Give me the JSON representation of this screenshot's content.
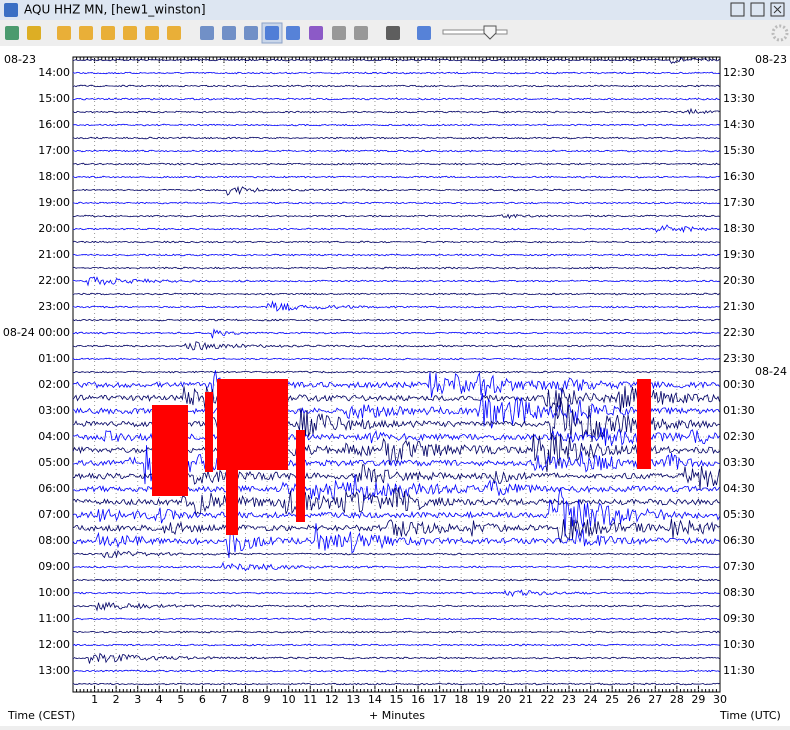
{
  "window": {
    "title": "AQU HHZ MN, [hew1_winston]"
  },
  "helicorder": {
    "left_date_top": "08-23",
    "left_times": [
      "14:00",
      "15:00",
      "16:00",
      "17:00",
      "18:00",
      "19:00",
      "20:00",
      "21:00",
      "22:00",
      "23:00",
      "08-24 00:00",
      "01:00",
      "02:00",
      "03:00",
      "04:00",
      "05:00",
      "06:00",
      "07:00",
      "08:00",
      "09:00",
      "10:00",
      "11:00",
      "12:00",
      "13:00"
    ],
    "right_date_top": "08-23",
    "right_date_mid": "08-24",
    "right_times": [
      "12:30",
      "13:30",
      "14:30",
      "15:30",
      "16:30",
      "17:30",
      "18:30",
      "19:30",
      "20:30",
      "21:30",
      "22:30",
      "23:30",
      "00:30",
      "01:30",
      "02:30",
      "03:30",
      "04:30",
      "05:30",
      "06:30",
      "07:30",
      "08:30",
      "09:30",
      "10:30",
      "11:30"
    ],
    "minutes": [
      "1",
      "2",
      "3",
      "4",
      "5",
      "6",
      "7",
      "8",
      "9",
      "10",
      "11",
      "12",
      "13",
      "14",
      "15",
      "16",
      "17",
      "18",
      "19",
      "20",
      "21",
      "22",
      "23",
      "24",
      "25",
      "26",
      "27",
      "28",
      "29",
      "30"
    ],
    "x_label_left": "Time (CEST)",
    "x_label_center": "+ Minutes",
    "x_label_right": "Time (UTC)"
  }
}
